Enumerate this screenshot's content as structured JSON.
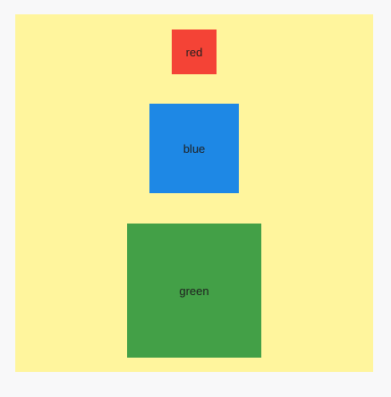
{
  "panel": {
    "background": "#fff59d"
  },
  "boxes": [
    {
      "label": "red",
      "color": "#f44336"
    },
    {
      "label": "blue",
      "color": "#1e88e5"
    },
    {
      "label": "green",
      "color": "#43a047"
    }
  ]
}
